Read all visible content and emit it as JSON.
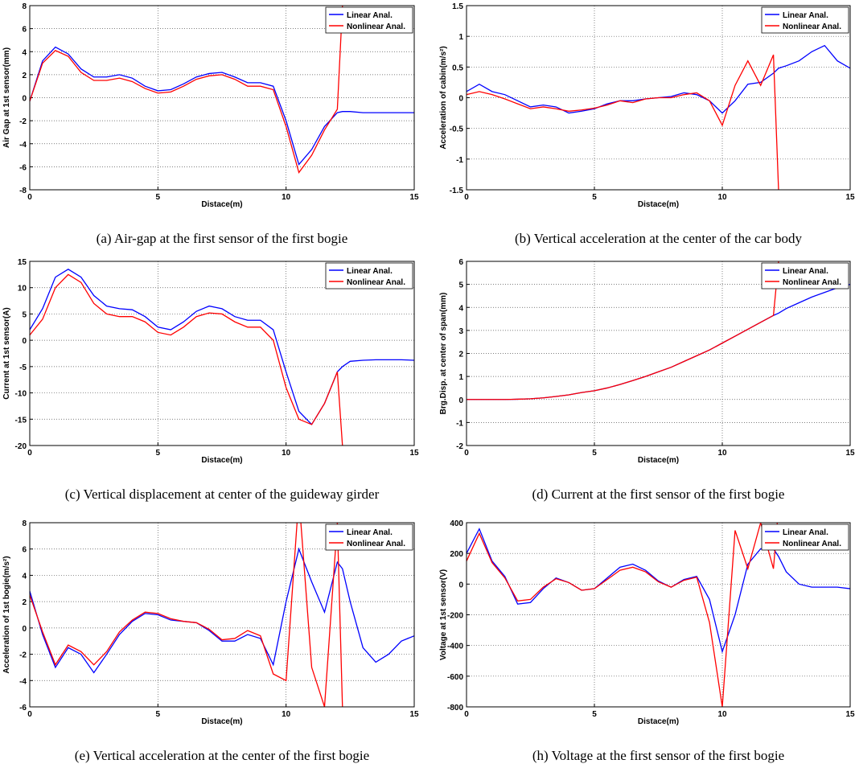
{
  "chart_data": [
    {
      "type": "line",
      "caption": "(a) Air-gap at the first sensor of the first bogie",
      "xlabel": "Distace(m)",
      "ylabel": "Air Gap at 1st sensor(mm)",
      "x": [
        0,
        0.5,
        1,
        1.5,
        2,
        2.5,
        3,
        3.5,
        4,
        4.5,
        5,
        5.5,
        6,
        6.5,
        7,
        7.5,
        8,
        8.5,
        9,
        9.5,
        10,
        10.5,
        11,
        11.5,
        12,
        12.2,
        12.5,
        13,
        13.5,
        14,
        14.5,
        15
      ],
      "series": [
        {
          "name": "Linear Anal.",
          "color": "#0000ff",
          "values": [
            -0.3,
            3.2,
            4.4,
            3.8,
            2.5,
            1.8,
            1.8,
            2.0,
            1.7,
            1.0,
            0.6,
            0.7,
            1.2,
            1.8,
            2.1,
            2.2,
            1.8,
            1.3,
            1.3,
            1.0,
            -2.0,
            -5.8,
            -4.5,
            -2.5,
            -1.3,
            -1.2,
            -1.2,
            -1.3,
            -1.3,
            -1.3,
            -1.3,
            -1.3
          ]
        },
        {
          "name": "Nonlinear Anal.",
          "color": "#ff0000",
          "values": [
            -0.3,
            3.0,
            4.1,
            3.6,
            2.2,
            1.5,
            1.5,
            1.7,
            1.4,
            0.8,
            0.4,
            0.5,
            1.0,
            1.6,
            1.9,
            2.0,
            1.6,
            1.0,
            1.0,
            0.7,
            -2.5,
            -6.5,
            -5.0,
            -2.8,
            -1.0,
            8,
            null,
            null,
            null,
            null,
            null,
            null
          ]
        }
      ],
      "xlim": [
        0,
        15
      ],
      "xticks": [
        0,
        5,
        10,
        15
      ],
      "ylim": [
        -8,
        8
      ],
      "yticks": [
        -8,
        -6,
        -4,
        -2,
        0,
        2,
        4,
        6,
        8
      ],
      "grid": true,
      "legend": "upper right"
    },
    {
      "type": "line",
      "caption": "(b) Vertical acceleration at the center of the car body",
      "xlabel": "Distace(m)",
      "ylabel": "Acceleration of cabin(m/s²)",
      "x": [
        0,
        0.5,
        1,
        1.5,
        2,
        2.5,
        3,
        3.5,
        4,
        4.5,
        5,
        5.5,
        6,
        6.5,
        7,
        7.5,
        8,
        8.5,
        9,
        9.5,
        10,
        10.5,
        11,
        11.5,
        12,
        12.2,
        12.5,
        13,
        13.5,
        14,
        14.5,
        15
      ],
      "series": [
        {
          "name": "Linear Anal.",
          "color": "#0000ff",
          "values": [
            0.1,
            0.22,
            0.1,
            0.05,
            -0.05,
            -0.15,
            -0.12,
            -0.15,
            -0.25,
            -0.22,
            -0.18,
            -0.1,
            -0.05,
            -0.05,
            -0.02,
            0.0,
            0.02,
            0.08,
            0.05,
            -0.05,
            -0.25,
            -0.05,
            0.22,
            0.25,
            0.4,
            0.48,
            0.52,
            0.6,
            0.75,
            0.85,
            0.6,
            0.48
          ]
        },
        {
          "name": "Nonlinear Anal.",
          "color": "#ff0000",
          "values": [
            0.05,
            0.1,
            0.05,
            -0.02,
            -0.1,
            -0.18,
            -0.15,
            -0.18,
            -0.22,
            -0.2,
            -0.17,
            -0.12,
            -0.05,
            -0.08,
            -0.02,
            0.0,
            0.0,
            0.05,
            0.08,
            -0.05,
            -0.45,
            0.2,
            0.6,
            0.2,
            0.7,
            -1.5,
            null,
            null,
            null,
            null,
            null,
            null
          ]
        }
      ],
      "xlim": [
        0,
        15
      ],
      "xticks": [
        0,
        5,
        10,
        15
      ],
      "ylim": [
        -1.5,
        1.5
      ],
      "yticks": [
        -1.5,
        -1,
        -0.5,
        0,
        0.5,
        1,
        1.5
      ],
      "grid": true,
      "legend": "upper right"
    },
    {
      "type": "line",
      "caption": "(c) Vertical displacement at center of the guideway girder",
      "xlabel": "Distace(m)",
      "ylabel": "Current at 1st sensor(A)",
      "x": [
        0,
        0.5,
        1,
        1.5,
        2,
        2.5,
        3,
        3.5,
        4,
        4.5,
        5,
        5.5,
        6,
        6.5,
        7,
        7.5,
        8,
        8.5,
        9,
        9.5,
        10,
        10.5,
        11,
        11.5,
        12,
        12.2,
        12.5,
        13,
        13.5,
        14,
        14.5,
        15
      ],
      "series": [
        {
          "name": "Linear Anal.",
          "color": "#0000ff",
          "values": [
            2,
            6,
            12,
            13.5,
            12,
            8.5,
            6.5,
            6,
            5.8,
            4.5,
            2.5,
            2,
            3.5,
            5.5,
            6.5,
            6,
            4.5,
            3.8,
            3.8,
            2,
            -6,
            -13.5,
            -16,
            -12,
            -6,
            -5,
            -4,
            -3.8,
            -3.7,
            -3.7,
            -3.7,
            -3.8
          ]
        },
        {
          "name": "Nonlinear Anal.",
          "color": "#ff0000",
          "values": [
            1,
            4,
            10,
            12.5,
            11,
            7,
            5,
            4.5,
            4.5,
            3.5,
            1.5,
            1,
            2.5,
            4.5,
            5.2,
            5,
            3.5,
            2.5,
            2.5,
            0,
            -9,
            -15,
            -16,
            -12,
            -6,
            -20,
            null,
            null,
            null,
            null,
            null,
            null
          ]
        }
      ],
      "xlim": [
        0,
        15
      ],
      "xticks": [
        0,
        5,
        10,
        15
      ],
      "ylim": [
        -20,
        15
      ],
      "yticks": [
        -20,
        -15,
        -10,
        -5,
        0,
        5,
        10,
        15
      ],
      "grid": true,
      "legend": "upper right"
    },
    {
      "type": "line",
      "caption": "(d) Current at the first sensor of the first bogie",
      "xlabel": "Distace(m)",
      "ylabel": "Brg.Disp. at center of span(mm)",
      "x": [
        0,
        0.5,
        1,
        1.5,
        2,
        2.5,
        3,
        3.5,
        4,
        4.5,
        5,
        5.5,
        6,
        6.5,
        7,
        7.5,
        8,
        8.5,
        9,
        9.5,
        10,
        10.5,
        11,
        11.5,
        12,
        12.2,
        12.5,
        13,
        13.5,
        14,
        14.5,
        15
      ],
      "series": [
        {
          "name": "Linear Anal.",
          "color": "#0000ff",
          "values": [
            0,
            0,
            0,
            0,
            0.01,
            0.03,
            0.07,
            0.13,
            0.2,
            0.3,
            0.38,
            0.5,
            0.65,
            0.82,
            1.0,
            1.2,
            1.4,
            1.65,
            1.9,
            2.15,
            2.45,
            2.75,
            3.05,
            3.35,
            3.65,
            3.75,
            3.95,
            4.2,
            4.45,
            4.65,
            4.85,
            5.0
          ]
        },
        {
          "name": "Nonlinear Anal.",
          "color": "#ff0000",
          "values": [
            0,
            0,
            0,
            0,
            0.01,
            0.03,
            0.07,
            0.13,
            0.2,
            0.3,
            0.38,
            0.5,
            0.65,
            0.82,
            1.0,
            1.2,
            1.4,
            1.65,
            1.9,
            2.15,
            2.45,
            2.75,
            3.05,
            3.35,
            3.65,
            6,
            null,
            null,
            null,
            null,
            null,
            null
          ]
        }
      ],
      "xlim": [
        0,
        15
      ],
      "xticks": [
        0,
        5,
        10,
        15
      ],
      "ylim": [
        -2,
        6
      ],
      "yticks": [
        -2,
        -1,
        0,
        1,
        2,
        3,
        4,
        5,
        6
      ],
      "grid": true,
      "legend": "upper right"
    },
    {
      "type": "line",
      "caption": "(e) Vertical acceleration at the center of the first bogie",
      "xlabel": "Distace(m)",
      "ylabel": "Acceleration of 1st bogie(m/s²)",
      "x": [
        0,
        0.5,
        1,
        1.5,
        2,
        2.5,
        3,
        3.5,
        4,
        4.5,
        5,
        5.5,
        6,
        6.5,
        7,
        7.5,
        8,
        8.5,
        9,
        9.5,
        10,
        10.5,
        11,
        11.5,
        12,
        12.2,
        12.5,
        13,
        13.5,
        14,
        14.5,
        15
      ],
      "series": [
        {
          "name": "Linear Anal.",
          "color": "#0000ff",
          "values": [
            2.8,
            -0.5,
            -3,
            -1.5,
            -2,
            -3.4,
            -2,
            -0.5,
            0.5,
            1.1,
            1.0,
            0.6,
            0.5,
            0.4,
            -0.2,
            -1.0,
            -1.0,
            -0.5,
            -0.8,
            -2.8,
            2,
            6,
            3.5,
            1.2,
            5,
            4.5,
            2,
            -1.5,
            -2.6,
            -2,
            -1,
            -0.6
          ]
        },
        {
          "name": "Nonlinear Anal.",
          "color": "#ff0000",
          "values": [
            2.5,
            -0.3,
            -2.8,
            -1.3,
            -1.8,
            -2.8,
            -1.8,
            -0.3,
            0.6,
            1.2,
            1.1,
            0.7,
            0.5,
            0.4,
            -0.1,
            -0.9,
            -0.8,
            -0.2,
            -0.6,
            -3.5,
            -4,
            10,
            -3,
            -6,
            8,
            -6,
            null,
            null,
            null,
            null,
            null,
            null
          ]
        }
      ],
      "xlim": [
        0,
        15
      ],
      "xticks": [
        0,
        5,
        10,
        15
      ],
      "ylim": [
        -6,
        8
      ],
      "yticks": [
        -6,
        -4,
        -2,
        0,
        2,
        4,
        6,
        8
      ],
      "grid": true,
      "legend": "upper right"
    },
    {
      "type": "line",
      "caption": "(h) Voltage at the first sensor of the first bogie",
      "xlabel": "Distace(m)",
      "ylabel": "Voltage at 1st sensor(V)",
      "x": [
        0,
        0.5,
        1,
        1.5,
        2,
        2.5,
        3,
        3.5,
        4,
        4.5,
        5,
        5.5,
        6,
        6.5,
        7,
        7.5,
        8,
        8.5,
        9,
        9.5,
        10,
        10.5,
        11,
        11.5,
        12,
        12.2,
        12.5,
        13,
        13.5,
        14,
        14.5,
        15
      ],
      "series": [
        {
          "name": "Linear Anal.",
          "color": "#0000ff",
          "values": [
            200,
            360,
            150,
            50,
            -130,
            -120,
            -30,
            40,
            10,
            -40,
            -30,
            40,
            110,
            130,
            90,
            20,
            -20,
            30,
            50,
            -100,
            -440,
            -200,
            130,
            230,
            230,
            180,
            80,
            0,
            -20,
            -20,
            -20,
            -30
          ]
        },
        {
          "name": "Nonlinear Anal.",
          "color": "#ff0000",
          "values": [
            150,
            330,
            140,
            40,
            -110,
            -100,
            -20,
            35,
            10,
            -40,
            -30,
            30,
            90,
            110,
            80,
            15,
            -20,
            25,
            45,
            -250,
            -800,
            350,
            100,
            400,
            100,
            500,
            null,
            null,
            null,
            null,
            null,
            null
          ]
        }
      ],
      "xlim": [
        0,
        15
      ],
      "xticks": [
        0,
        5,
        10,
        15
      ],
      "ylim": [
        -800,
        400
      ],
      "yticks": [
        -800,
        -600,
        -400,
        -200,
        0,
        200,
        400
      ],
      "grid": true,
      "legend": "upper right"
    }
  ]
}
